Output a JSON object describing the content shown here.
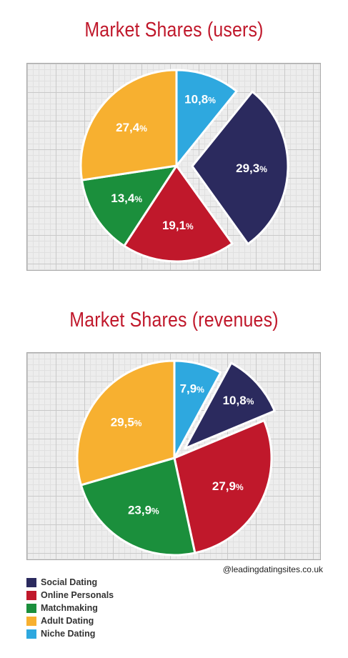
{
  "titles": {
    "users": "Market Shares (users)",
    "revenues": "Market Shares (revenues)"
  },
  "credit": "@leadingdatingsites.co.uk",
  "legend": [
    {
      "label": "Social Dating",
      "color": "#2b2a5e"
    },
    {
      "label": "Online Personals",
      "color": "#c0182b"
    },
    {
      "label": "Matchmaking",
      "color": "#1b8f3c"
    },
    {
      "label": "Adult Dating",
      "color": "#f7b030"
    },
    {
      "label": "Niche Dating",
      "color": "#2ea8df"
    }
  ],
  "chart_data": [
    {
      "type": "pie",
      "title": "Market Shares (users)",
      "unit": "%",
      "exploded": "Social Dating",
      "categories": [
        "Niche Dating",
        "Social Dating",
        "Online Personals",
        "Matchmaking",
        "Adult Dating"
      ],
      "values": [
        10.8,
        29.3,
        19.1,
        13.4,
        27.4
      ],
      "labels": [
        "10,8",
        "29,3",
        "19,1",
        "13,4",
        "27,4"
      ],
      "colors": [
        "#2ea8df",
        "#2b2a5e",
        "#c0182b",
        "#1b8f3c",
        "#f7b030"
      ]
    },
    {
      "type": "pie",
      "title": "Market Shares (revenues)",
      "unit": "%",
      "exploded": "Social Dating",
      "categories": [
        "Niche Dating",
        "Social Dating",
        "Online Personals",
        "Matchmaking",
        "Adult Dating"
      ],
      "values": [
        7.9,
        10.8,
        27.9,
        23.9,
        29.5
      ],
      "labels": [
        "7,9",
        "10,8",
        "27,9",
        "23,9",
        "29,5"
      ],
      "colors": [
        "#2ea8df",
        "#2b2a5e",
        "#c0182b",
        "#1b8f3c",
        "#f7b030"
      ]
    }
  ]
}
